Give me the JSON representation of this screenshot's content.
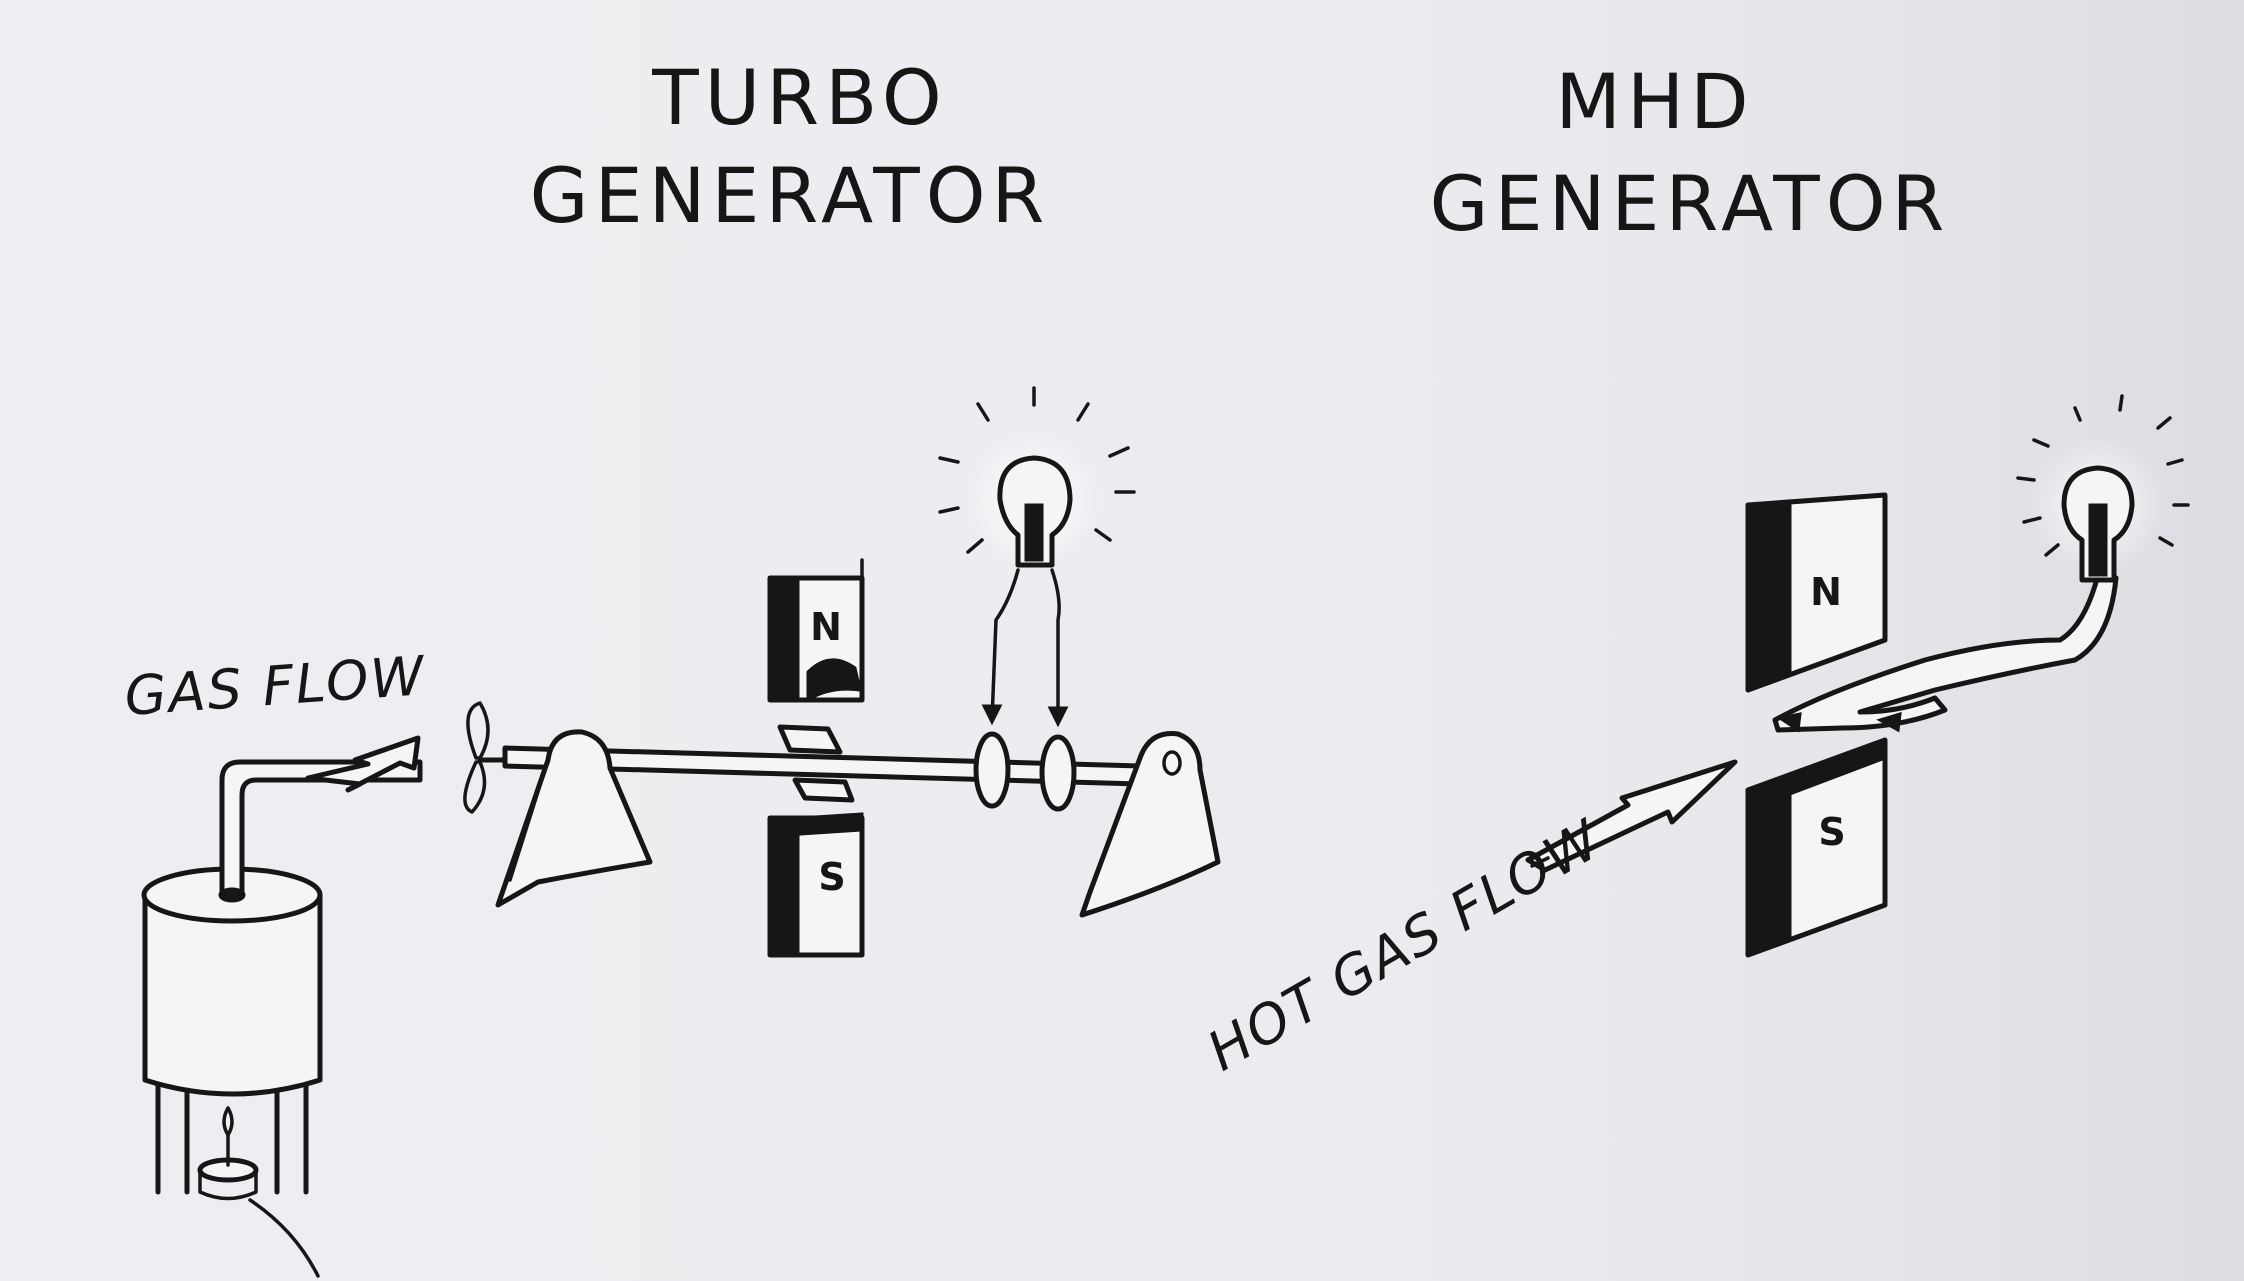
{
  "turbo": {
    "title_line1": "TURBO",
    "title_line2": "GENERATOR",
    "flow_label": "GAS FLOW",
    "north_label": "N",
    "south_label": "S"
  },
  "mhd": {
    "title_line1": "MHD",
    "title_line2": "GENERATOR",
    "flow_label": "HOT GAS FLOW",
    "north_label": "N",
    "south_label": "S"
  },
  "colors": {
    "paper": "#eceef1",
    "ink": "#161616"
  },
  "icons": [
    "boiler-icon",
    "flame-icon",
    "propeller-icon",
    "bearing-support-icon",
    "magnet-icon",
    "light-bulb-icon",
    "flow-arrow-icon"
  ]
}
